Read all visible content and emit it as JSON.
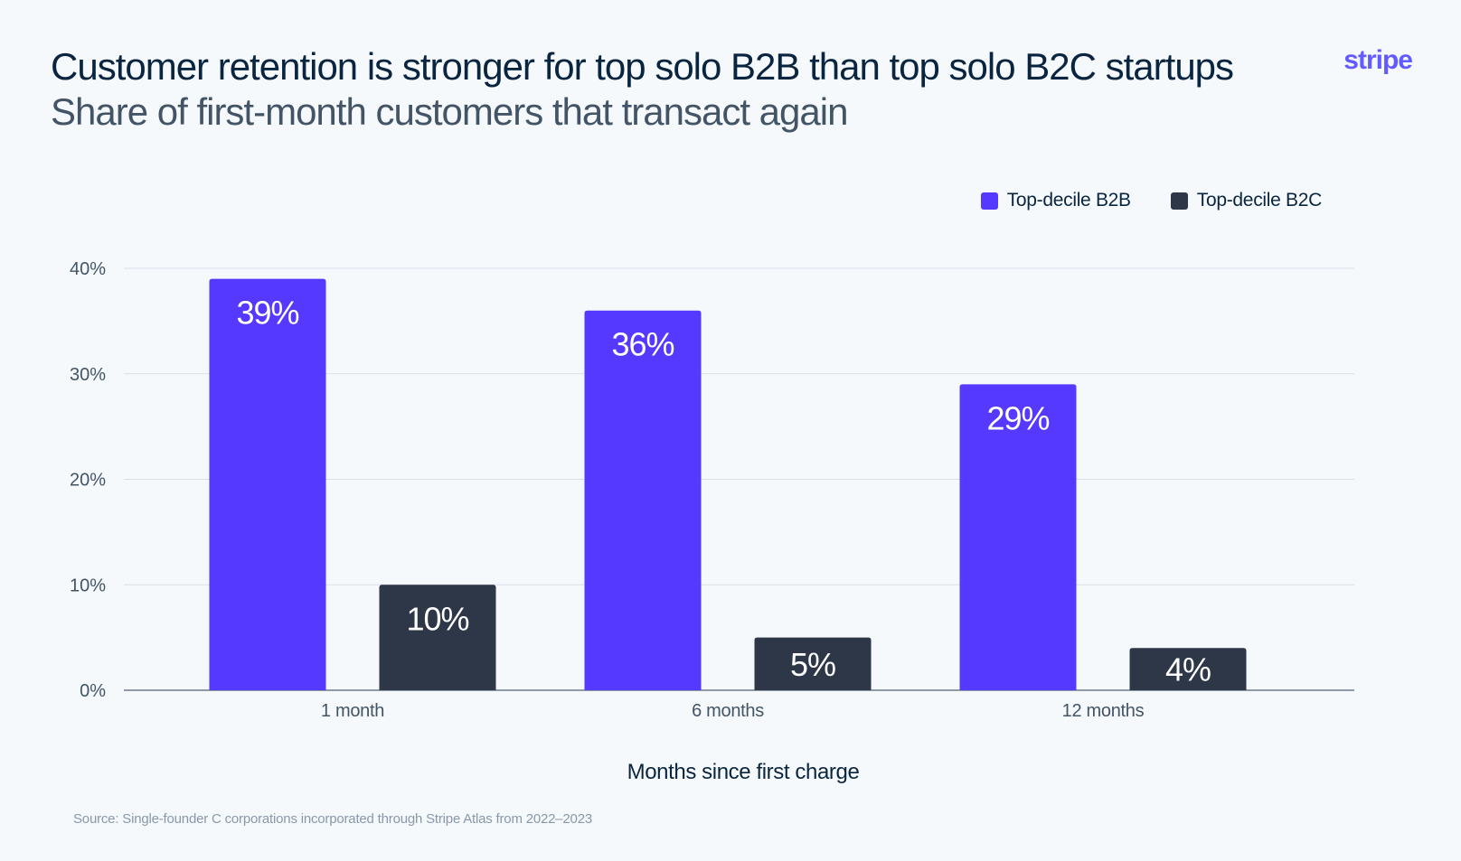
{
  "header": {
    "title": "Customer retention is stronger for top solo B2B than top solo B2C startups",
    "subtitle": "Share of first-month customers that transact again",
    "logo_text": "stripe"
  },
  "colors": {
    "b2b": "#5539ff",
    "b2c": "#2d3748",
    "grid": "#d9dfe7",
    "axis": "#6b7a8c",
    "tick_text": "#425466",
    "bar_label": "#ffffff",
    "logo": "#635bff"
  },
  "chart_data": {
    "type": "bar",
    "title": "Customer retention is stronger for top solo B2B than top solo B2C startups",
    "subtitle": "Share of first-month customers that transact again",
    "categories": [
      "1 month",
      "6 months",
      "12 months"
    ],
    "series": [
      {
        "name": "Top-decile B2B",
        "values": [
          39,
          36,
          29
        ],
        "labels": [
          "39%",
          "36%",
          "29%"
        ],
        "color": "#5539ff"
      },
      {
        "name": "Top-decile B2C",
        "values": [
          10,
          5,
          4
        ],
        "labels": [
          "10%",
          "5%",
          "4%"
        ],
        "color": "#2d3748"
      }
    ],
    "xlabel": "Months since first charge",
    "ylabel": "",
    "ylim": [
      0,
      40
    ],
    "yticks": [
      0,
      10,
      20,
      30,
      40
    ],
    "ytick_labels": [
      "0%",
      "10%",
      "20%",
      "30%",
      "40%"
    ],
    "grid": true,
    "legend_position": "top-right"
  },
  "footer": {
    "source": "Source: Single-founder C corporations incorporated through Stripe Atlas from 2022–2023"
  }
}
